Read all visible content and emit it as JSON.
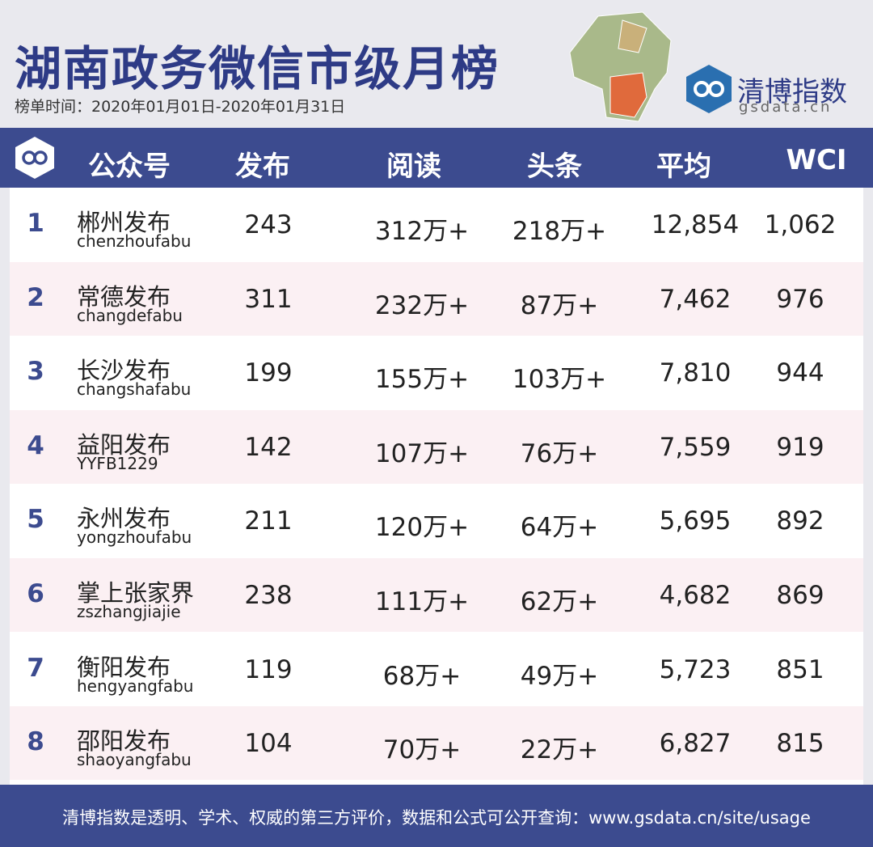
{
  "header": {
    "title": "湖南政务微信市级月榜",
    "subtitle": "榜单时间：2020年01月01日-2020年01月31日",
    "logo_name": "清博指数",
    "logo_url": "gsdata.cn"
  },
  "table": {
    "columns": [
      "公众号",
      "发布",
      "阅读",
      "头条",
      "平均",
      "WCI"
    ],
    "rows": [
      [
        "1",
        "郴州发布",
        "chenzhoufabu",
        "243",
        "312万+",
        "218万+",
        "12,854",
        "1,062"
      ],
      [
        "2",
        "常德发布",
        "changdefabu",
        "311",
        "232万+",
        "87万+",
        "7,462",
        "976"
      ],
      [
        "3",
        "长沙发布",
        "changshafabu",
        "199",
        "155万+",
        "103万+",
        "7,810",
        "944"
      ],
      [
        "4",
        "益阳发布",
        "YYFB1229",
        "142",
        "107万+",
        "76万+",
        "7,559",
        "919"
      ],
      [
        "5",
        "永州发布",
        "yongzhoufabu",
        "211",
        "120万+",
        "64万+",
        "5,695",
        "892"
      ],
      [
        "6",
        "掌上张家界",
        "zszhangjiajie",
        "238",
        "111万+",
        "62万+",
        "4,682",
        "869"
      ],
      [
        "7",
        "衡阳发布",
        "hengyangfabu",
        "119",
        "68万+",
        "49万+",
        "5,723",
        "851"
      ],
      [
        "8",
        "邵阳发布",
        "shaoyangfabu",
        "104",
        "70万+",
        "22万+",
        "6,827",
        "815"
      ]
    ]
  },
  "footer": {
    "text": "清博指数是透明、学术、权威的第三方评价，数据和公式可公开查询：www.gsdata.cn/site/usage"
  }
}
